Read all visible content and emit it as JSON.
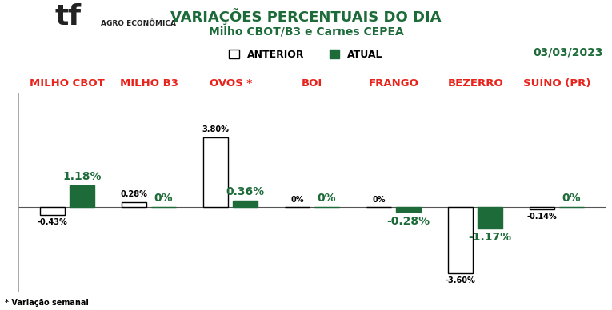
{
  "chart_data": {
    "type": "bar",
    "title": "VARIAÇÕES PERCENTUAIS DO DIA",
    "subtitle": "Milho CBOT/B3 e Carnes CEPEA",
    "annotations": [
      "03/03/2023",
      "* Variação semanal",
      "tf",
      "AGRO ECONÔMICA"
    ],
    "categories": [
      "MILHO CBOT",
      "MILHO B3",
      "OVOS *",
      "BOI",
      "FRANGO",
      "BEZERRO",
      "SUÍNO (PR)"
    ],
    "series": [
      {
        "name": "ANTERIOR",
        "color": "#ffffff",
        "values": [
          -0.43,
          0.28,
          3.8,
          0,
          0,
          -3.6,
          -0.14
        ],
        "value_labels": [
          "-0.43%",
          "0.28%",
          "3.80%",
          "0%",
          "0%",
          "-3.60%",
          "-0.14%"
        ]
      },
      {
        "name": "ATUAL",
        "color": "#1e6b3a",
        "values": [
          1.18,
          0,
          0.36,
          0,
          -0.28,
          -1.17,
          0
        ],
        "value_labels": [
          "1.18%",
          "0%",
          "0.36%",
          "0%",
          "-0.28%",
          "-1.17%",
          "0%"
        ]
      }
    ],
    "ylim": [
      -4.6,
      6.2
    ],
    "yticks": [],
    "legend": "upper center",
    "data_labels": true,
    "tick_labels": "x",
    "grid": false
  }
}
